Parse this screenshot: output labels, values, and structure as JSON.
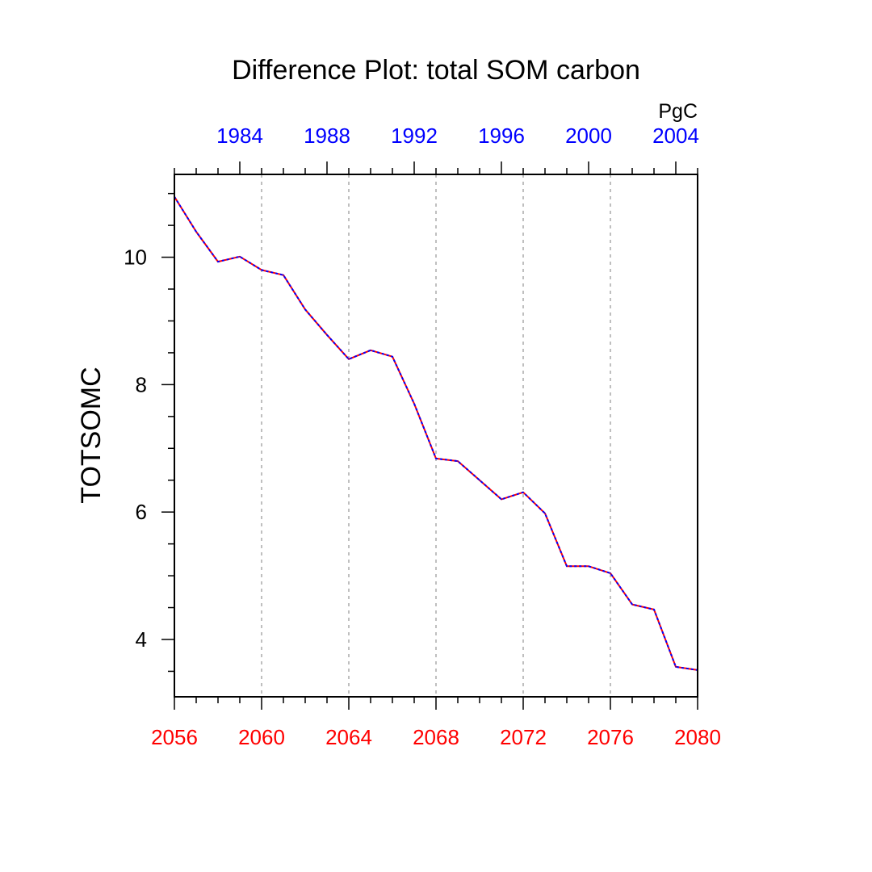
{
  "chart_data": {
    "type": "line",
    "title": "Difference Plot: total SOM carbon",
    "ylabel": "TOTSOMC",
    "units": "PgC",
    "xlim": [
      2056,
      2080
    ],
    "ylim": [
      3.1,
      11.3
    ],
    "grid": "vertical dashed at major x ticks",
    "x_bottom_ticks": [
      "2056",
      "2060",
      "2064",
      "2068",
      "2072",
      "2076",
      "2080"
    ],
    "x_top_ticks": [
      "1984",
      "1988",
      "1992",
      "1996",
      "2000",
      "2004"
    ],
    "y_ticks": [
      "4",
      "6",
      "8",
      "10"
    ],
    "x_bottom_tick_color": "#ff0000",
    "x_top_tick_color": "#0000ff",
    "series": [
      {
        "line_colors": [
          "#ff0000",
          "#0000ff"
        ],
        "style": "dashed overlay",
        "x": [
          2056,
          2057,
          2058,
          2059,
          2060,
          2061,
          2062,
          2063,
          2064,
          2065,
          2066,
          2067,
          2068,
          2069,
          2070,
          2071,
          2072,
          2073,
          2074,
          2075,
          2076,
          2077,
          2078,
          2079,
          2080
        ],
        "values": [
          10.95,
          10.4,
          9.93,
          10.01,
          9.8,
          9.72,
          9.18,
          8.78,
          8.4,
          8.54,
          8.44,
          7.7,
          6.84,
          6.8,
          6.5,
          6.2,
          6.31,
          5.98,
          5.15,
          5.15,
          5.04,
          4.55,
          4.47,
          3.57,
          3.52
        ]
      }
    ]
  }
}
